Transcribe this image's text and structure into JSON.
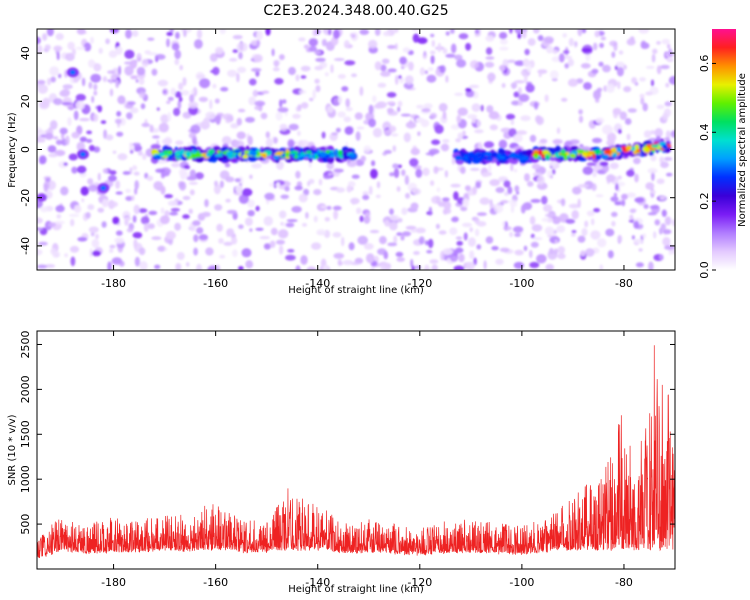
{
  "title": "C2E3.2024.348.00.40.G25",
  "chart_data": [
    {
      "type": "heatmap",
      "xlabel": "Height of straight line (km)",
      "ylabel": "Frequency (Hz)",
      "xlim": [
        -195,
        -70
      ],
      "ylim": [
        -50,
        50
      ],
      "xticks": [
        -180,
        -160,
        -140,
        -120,
        -100,
        -80
      ],
      "yticks": [
        -40,
        -20,
        0,
        20,
        40
      ],
      "colorbar": {
        "label": "Normalized spectral amplitude",
        "range": [
          0.0,
          0.7
        ],
        "ticks": [
          0.0,
          0.2,
          0.4,
          0.6
        ],
        "colors": [
          "#ffffff",
          "#e3c9ff",
          "#b07cff",
          "#7a1cf5",
          "#3a00d8",
          "#0030ff",
          "#00a0ff",
          "#00e0d0",
          "#00e060",
          "#60f000",
          "#e8f000",
          "#ff9000",
          "#ff2020",
          "#ff1090"
        ]
      },
      "signal_band": {
        "segments": [
          {
            "x_range": [
              -172,
              -145
            ],
            "frequency": -2,
            "peak_amplitude": 0.6
          },
          {
            "x_range": [
              -145,
              -133
            ],
            "frequency": -2,
            "peak_amplitude": 0.45
          },
          {
            "x_range": [
              -113,
              -98
            ],
            "frequency": -3,
            "peak_amplitude": 0.3
          },
          {
            "x_range": [
              -98,
              -71
            ],
            "frequency": -2,
            "peak_amplitude": 0.7
          }
        ],
        "isolated_features": [
          {
            "x": -188,
            "frequency": 32
          },
          {
            "x": -182,
            "frequency": -16
          },
          {
            "x": -186,
            "frequency": -2
          }
        ]
      },
      "background": "scattered low-amplitude noise (0.0–0.2)"
    },
    {
      "type": "line",
      "xlabel": "Height of straight line (km)",
      "ylabel": "SNR (10 * v/v)",
      "xlim": [
        -195,
        -70
      ],
      "ylim": [
        0,
        2650
      ],
      "xticks": [
        -180,
        -160,
        -140,
        -120,
        -100,
        -80
      ],
      "yticks": [
        500,
        1000,
        1500,
        2000,
        2500
      ],
      "color": "#ee2222",
      "envelope": [
        {
          "x": -195,
          "y": 330
        },
        {
          "x": -190,
          "y": 600
        },
        {
          "x": -185,
          "y": 500
        },
        {
          "x": -180,
          "y": 560
        },
        {
          "x": -175,
          "y": 540
        },
        {
          "x": -170,
          "y": 640
        },
        {
          "x": -165,
          "y": 560
        },
        {
          "x": -161,
          "y": 820
        },
        {
          "x": -155,
          "y": 540
        },
        {
          "x": -150,
          "y": 570
        },
        {
          "x": -146,
          "y": 900
        },
        {
          "x": -140,
          "y": 700
        },
        {
          "x": -135,
          "y": 520
        },
        {
          "x": -130,
          "y": 550
        },
        {
          "x": -125,
          "y": 500
        },
        {
          "x": -120,
          "y": 460
        },
        {
          "x": -115,
          "y": 520
        },
        {
          "x": -110,
          "y": 560
        },
        {
          "x": -105,
          "y": 520
        },
        {
          "x": -100,
          "y": 480
        },
        {
          "x": -95,
          "y": 560
        },
        {
          "x": -90,
          "y": 900
        },
        {
          "x": -87,
          "y": 1050
        },
        {
          "x": -84,
          "y": 1150
        },
        {
          "x": -81,
          "y": 1800
        },
        {
          "x": -78,
          "y": 1250
        },
        {
          "x": -76,
          "y": 1550
        },
        {
          "x": -74,
          "y": 2620
        },
        {
          "x": -72,
          "y": 2100
        },
        {
          "x": -70,
          "y": 1700
        }
      ]
    }
  ]
}
